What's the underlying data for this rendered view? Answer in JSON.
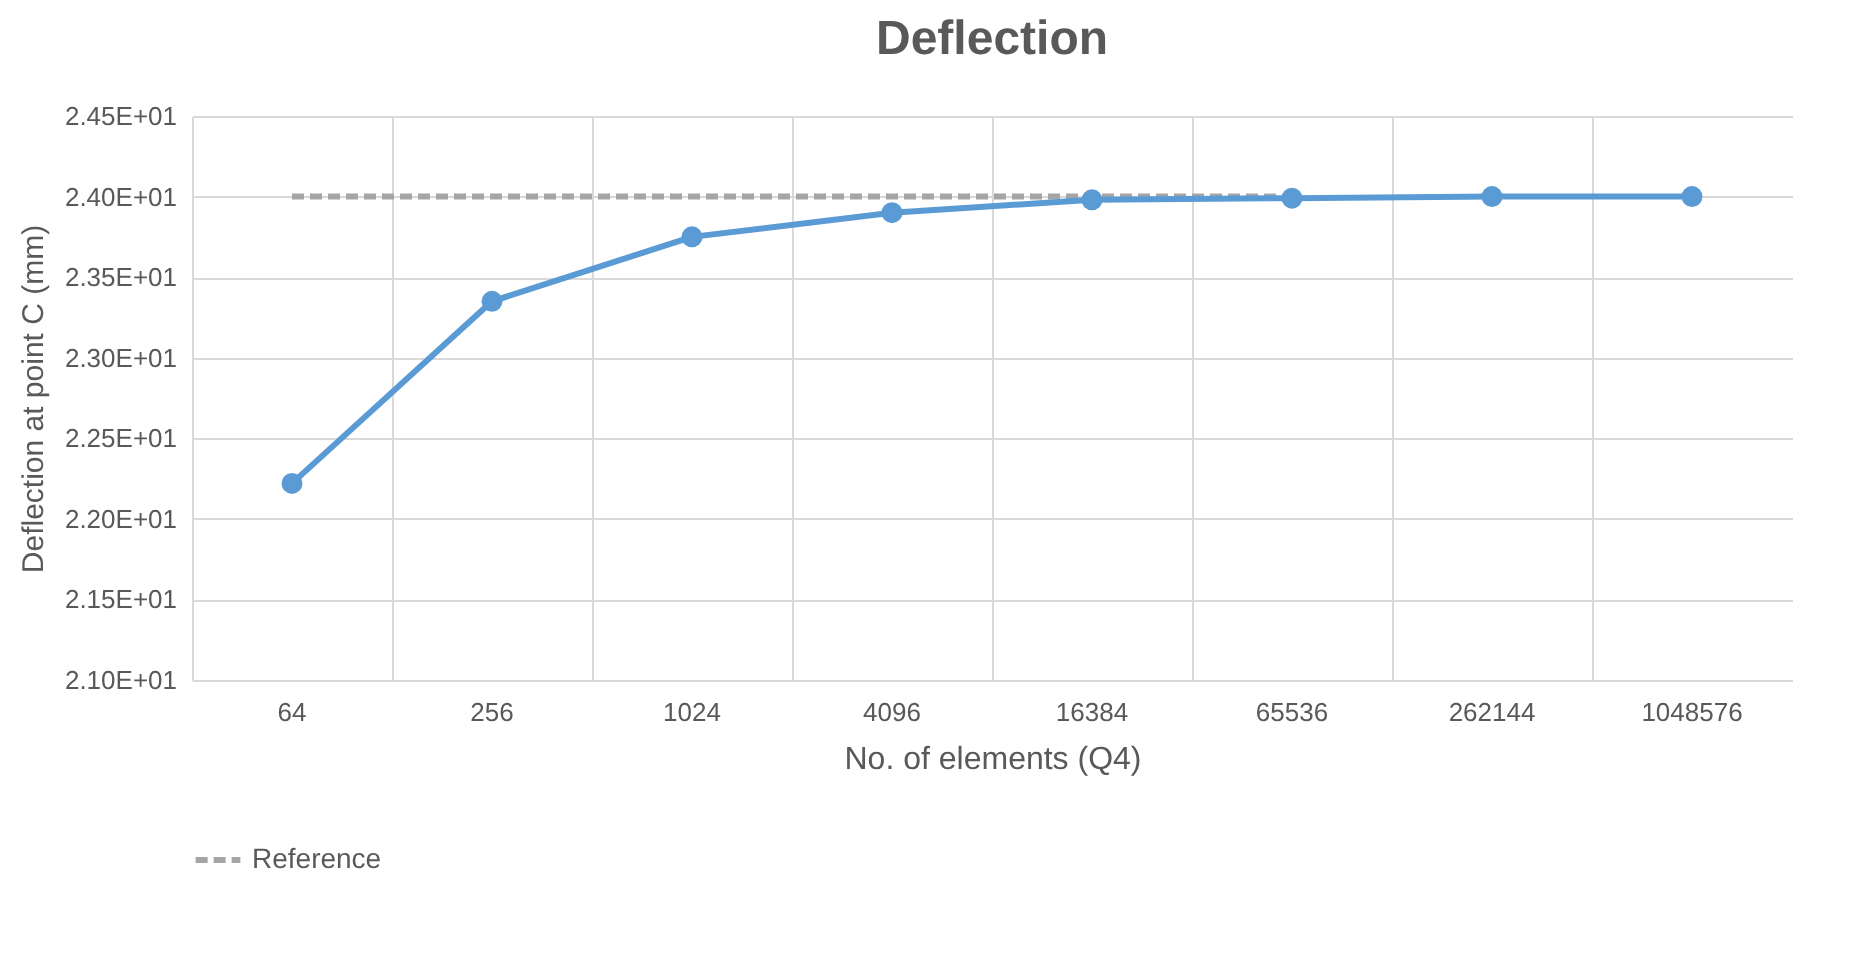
{
  "chart_data": {
    "type": "line",
    "title": "Deflection",
    "xlabel": "No. of elements (Q4)",
    "ylabel": "Deflection at point C (mm)",
    "categories": [
      "64",
      "256",
      "1024",
      "4096",
      "16384",
      "65536",
      "262144",
      "1048576"
    ],
    "series": [
      {
        "name": "Reference",
        "color": "#a5a5a5",
        "values": [
          24.0,
          24.0,
          24.0,
          24.0,
          24.0,
          24.0,
          null,
          null
        ],
        "line_style": "dashed",
        "marker": "none"
      },
      {
        "color": "#5b9bd5",
        "values": [
          22.22,
          23.35,
          23.75,
          23.9,
          23.98,
          23.99,
          24.0,
          24.0
        ],
        "line_style": "solid",
        "marker": "circle"
      }
    ],
    "ylim": [
      21.0,
      24.5
    ],
    "yticks": [
      {
        "value": 21.0,
        "label": "2.10E+01"
      },
      {
        "value": 21.5,
        "label": "2.15E+01"
      },
      {
        "value": 22.0,
        "label": "2.20E+01"
      },
      {
        "value": 22.5,
        "label": "2.25E+01"
      },
      {
        "value": 23.0,
        "label": "2.30E+01"
      },
      {
        "value": 23.5,
        "label": "2.35E+01"
      },
      {
        "value": 24.0,
        "label": "2.40E+01"
      },
      {
        "value": 24.5,
        "label": "2.45E+01"
      }
    ],
    "grid": true,
    "legend": "bottom"
  }
}
